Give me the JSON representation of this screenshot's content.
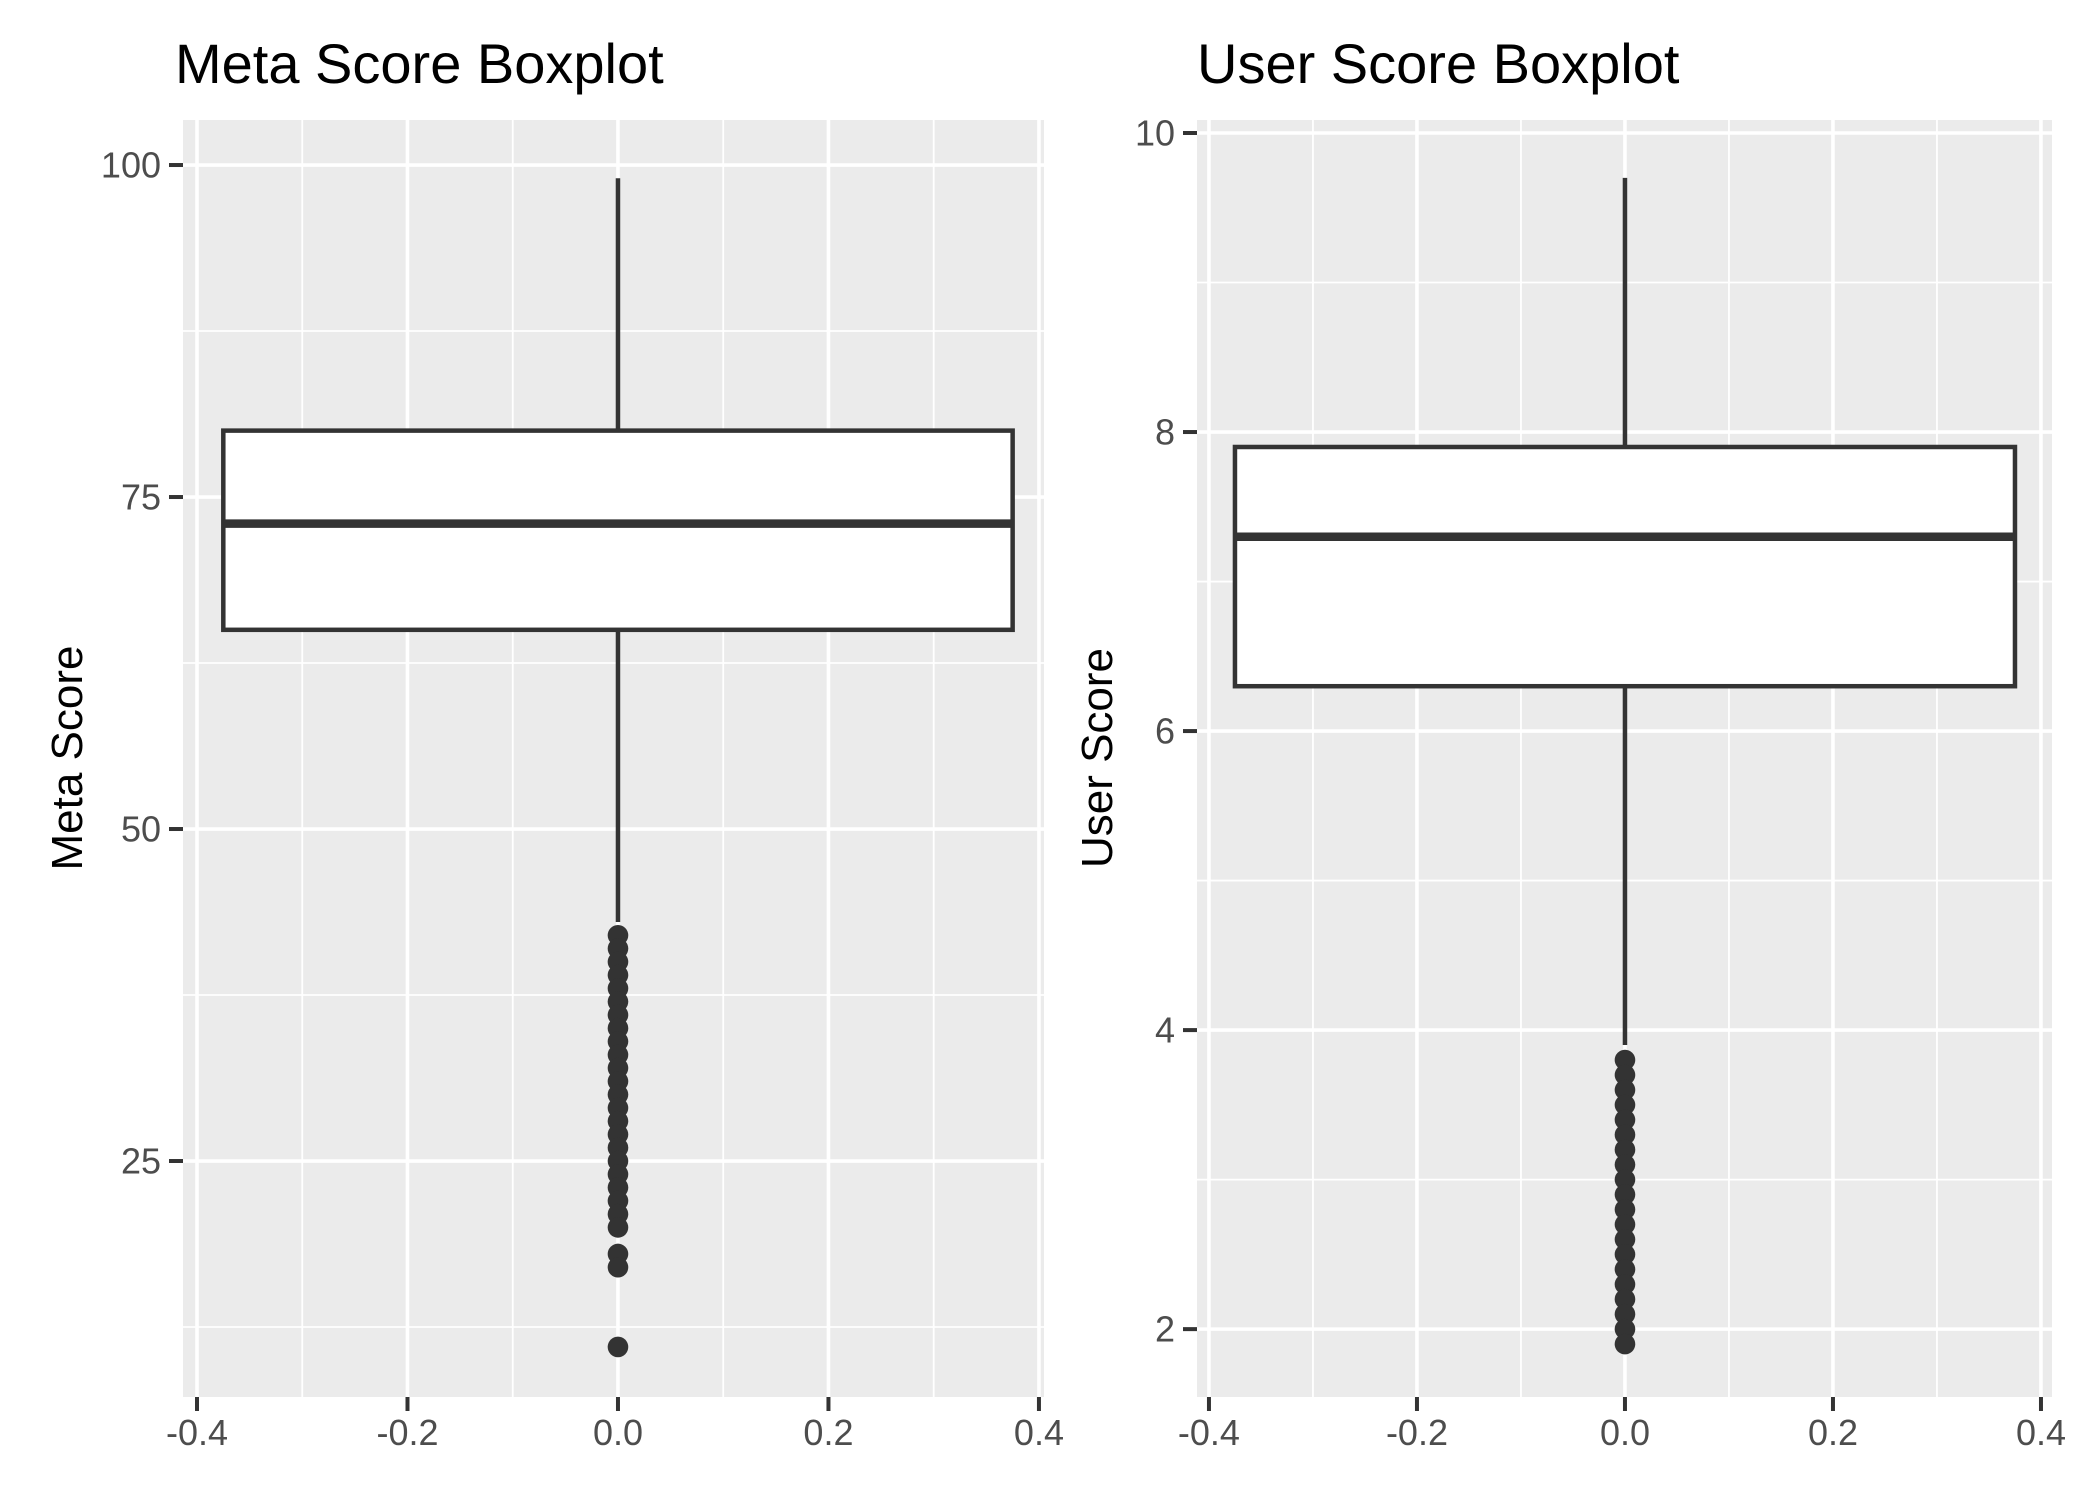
{
  "figure": {
    "background": "#FFFFFF",
    "description": "Two side-by-side ggplot-style vertical boxplots on grey panels with white gridlines"
  },
  "style": {
    "panel_bg": "#EBEBEB",
    "grid_color": "#FFFFFF",
    "box_stroke": "#333333",
    "box_fill": "#FFFFFF",
    "outlier_color": "#333333",
    "axis_tick_color": "#333333",
    "tick_label_color": "#4D4D4D",
    "title_color": "#000000",
    "axis_title_color": "#000000"
  },
  "chart_data": [
    {
      "type": "boxplot",
      "title": "Meta Score Boxplot",
      "ylabel": "Meta Score",
      "xlabel": "",
      "series_name": "Meta Score",
      "box": {
        "lower_whisker": 43,
        "q1": 65,
        "median": 73,
        "q3": 80,
        "upper_whisker": 99
      },
      "outliers": [
        42,
        41,
        40,
        39,
        38,
        37,
        36,
        35,
        34,
        33,
        32,
        31,
        30,
        29,
        28,
        27,
        26,
        25,
        24,
        23,
        22,
        21,
        20,
        18,
        17,
        11
      ],
      "x_center": 0,
      "box_width": 0.75,
      "y_axis": {
        "tick_values": [
          100,
          75,
          50,
          25
        ],
        "tick_labels": [
          "100",
          "75",
          "50",
          "25"
        ],
        "minor_values": [
          87.5,
          62.5,
          37.5,
          12.5
        ],
        "lim": [
          7.23,
          103.39
        ]
      },
      "x_axis": {
        "tick_values": [
          -0.4,
          -0.2,
          0,
          0.2,
          0.4
        ],
        "tick_labels": [
          "-0.4",
          "-0.2",
          "0.0",
          "0.2",
          "0.4"
        ],
        "minor_values": [
          -0.3,
          -0.1,
          0.1,
          0.3
        ],
        "lim": [
          -0.4133,
          0.4048
        ]
      },
      "grid": true,
      "legend": false
    },
    {
      "type": "boxplot",
      "title": "User Score Boxplot",
      "ylabel": "User Score",
      "xlabel": "",
      "series_name": "User Score",
      "box": {
        "lower_whisker": 3.9,
        "q1": 6.3,
        "median": 7.3,
        "q3": 7.9,
        "upper_whisker": 9.7
      },
      "outliers": [
        3.8,
        3.7,
        3.6,
        3.5,
        3.4,
        3.3,
        3.2,
        3.1,
        3.0,
        2.9,
        2.8,
        2.7,
        2.6,
        2.5,
        2.4,
        2.3,
        2.2,
        2.1,
        2.0,
        1.9
      ],
      "x_center": 0,
      "box_width": 0.75,
      "y_axis": {
        "tick_values": [
          10,
          8,
          6,
          4,
          2
        ],
        "tick_labels": [
          "10",
          "8",
          "6",
          "4",
          "2"
        ],
        "minor_values": [
          9,
          7,
          5,
          3
        ],
        "lim": [
          1.546,
          10.087
        ]
      },
      "x_axis": {
        "tick_values": [
          -0.4,
          -0.2,
          0,
          0.2,
          0.4
        ],
        "tick_labels": [
          "-0.4",
          "-0.2",
          "0.0",
          "0.2",
          "0.4"
        ],
        "minor_values": [
          -0.3,
          -0.1,
          0.1,
          0.3
        ],
        "lim": [
          -0.4115,
          0.4106
        ]
      },
      "grid": true,
      "legend": false
    }
  ]
}
